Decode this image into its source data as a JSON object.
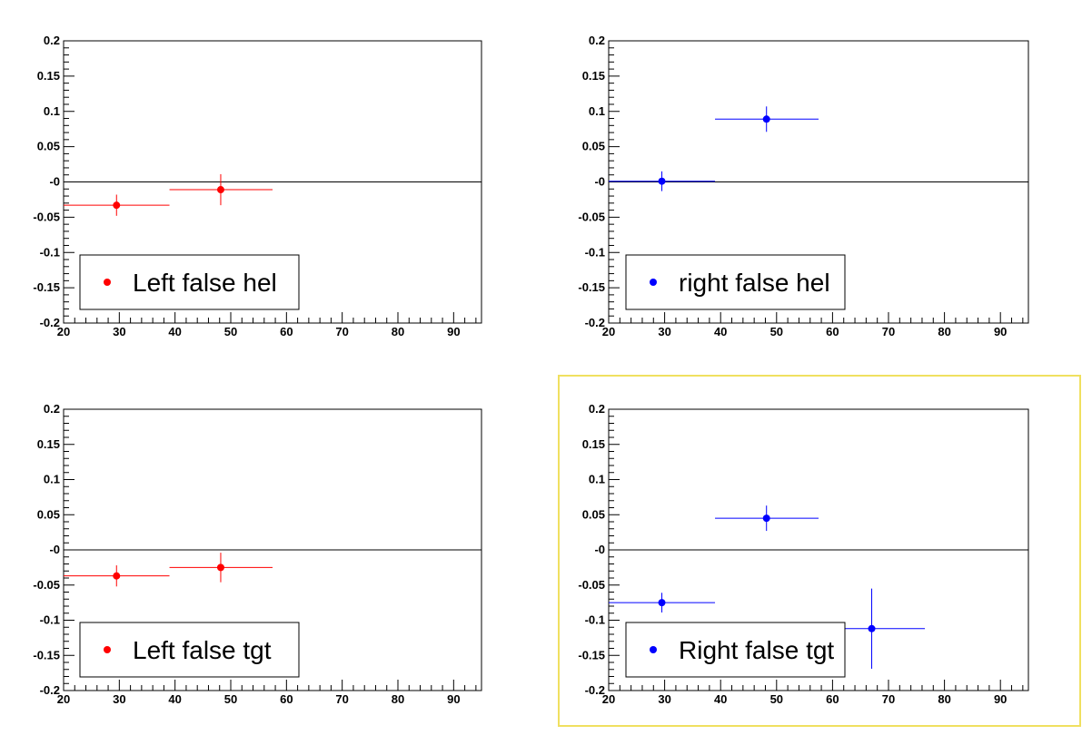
{
  "chart_data": [
    {
      "type": "scatter",
      "legend": "Left false hel",
      "color": "#ff0000",
      "xlim": [
        20,
        95
      ],
      "ylim": [
        -0.2,
        0.2
      ],
      "points": [
        {
          "x": 29.5,
          "y": -0.033,
          "x_low": 20,
          "x_high": 39,
          "y_err": 0.015
        },
        {
          "x": 48.2,
          "y": -0.011,
          "x_low": 39,
          "x_high": 57.5,
          "y_err": 0.022
        }
      ],
      "legend_position": "bottom-left",
      "highlighted": false
    },
    {
      "type": "scatter",
      "legend": "right false hel",
      "color": "#0000ff",
      "xlim": [
        20,
        95
      ],
      "ylim": [
        -0.2,
        0.2
      ],
      "points": [
        {
          "x": 29.5,
          "y": 0.001,
          "x_low": 20,
          "x_high": 39,
          "y_err": 0.014
        },
        {
          "x": 48.2,
          "y": 0.089,
          "x_low": 39,
          "x_high": 57.5,
          "y_err": 0.018
        }
      ],
      "legend_position": "bottom-left",
      "highlighted": false
    },
    {
      "type": "scatter",
      "legend": "Left false tgt",
      "color": "#ff0000",
      "xlim": [
        20,
        95
      ],
      "ylim": [
        -0.2,
        0.2
      ],
      "points": [
        {
          "x": 29.5,
          "y": -0.037,
          "x_low": 20,
          "x_high": 39,
          "y_err": 0.015
        },
        {
          "x": 48.2,
          "y": -0.025,
          "x_low": 39,
          "x_high": 57.5,
          "y_err": 0.021
        }
      ],
      "legend_position": "bottom-left",
      "highlighted": false
    },
    {
      "type": "scatter",
      "legend": "Right false tgt",
      "color": "#0000ff",
      "xlim": [
        20,
        95
      ],
      "ylim": [
        -0.2,
        0.2
      ],
      "points": [
        {
          "x": 29.5,
          "y": -0.075,
          "x_low": 20,
          "x_high": 39,
          "y_err": 0.014
        },
        {
          "x": 48.2,
          "y": 0.045,
          "x_low": 39,
          "x_high": 57.5,
          "y_err": 0.018
        },
        {
          "x": 67.0,
          "y": -0.112,
          "x_low": 57.5,
          "x_high": 76.5,
          "y_err": 0.057
        }
      ],
      "legend_position": "bottom-left",
      "highlighted": true
    }
  ],
  "axes": {
    "x_ticks": [
      20,
      30,
      40,
      50,
      60,
      70,
      80,
      90
    ],
    "y_ticks": [
      -0.2,
      -0.15,
      -0.1,
      -0.05,
      0,
      0.05,
      0.1,
      0.15,
      0.2
    ],
    "x_tick_labels": [
      "20",
      "30",
      "40",
      "50",
      "60",
      "70",
      "80",
      "90"
    ],
    "y_tick_labels": [
      "-0.2",
      "-0.15",
      "-0.1",
      "-0.05",
      "-0",
      "0.05",
      "0.1",
      "0.15",
      "0.2"
    ]
  },
  "highlight_color": "#f0e060"
}
